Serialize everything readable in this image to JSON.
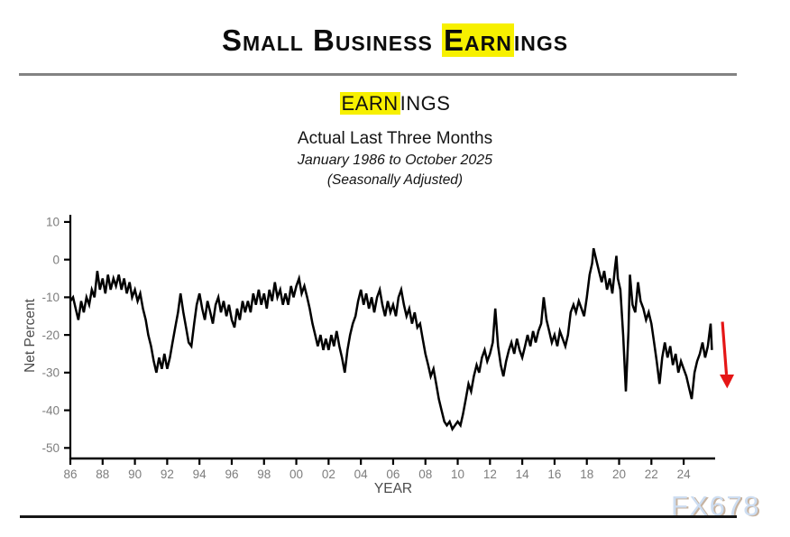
{
  "theme": {
    "highlight_color": "#f7f000",
    "line_color": "#000000",
    "arrow_color": "#e51616",
    "axis_color": "#000000",
    "tick_label_color": "#7d7d7d",
    "axis_title_color": "#4b4b4b"
  },
  "header": {
    "title_part1": "Small Business ",
    "title_highlight": "Earn",
    "title_part2": "ings"
  },
  "subtitle": {
    "line1_highlight": "EARN",
    "line1_rest": "INGS",
    "line2": "Actual Last Three Months",
    "line3": "January 1986 to October 2025",
    "line4": "(Seasonally Adjusted)"
  },
  "watermark": "FX678",
  "chart_data": {
    "type": "line",
    "title": "Earnings — Actual Last Three Months",
    "xlabel": "YEAR",
    "ylabel": "Net Percent",
    "legend": "none",
    "grid": false,
    "xlim": [
      1986,
      2025.95
    ],
    "ylim": [
      -52.8,
      11.9
    ],
    "x_tick_years": [
      1986,
      1988,
      1990,
      1992,
      1994,
      1996,
      1998,
      2000,
      2002,
      2004,
      2006,
      2008,
      2010,
      2012,
      2014,
      2016,
      2018,
      2020,
      2022,
      2024
    ],
    "x_tick_labels": [
      "86",
      "88",
      "90",
      "92",
      "94",
      "96",
      "98",
      "00",
      "02",
      "04",
      "06",
      "08",
      "10",
      "12",
      "14",
      "16",
      "18",
      "20",
      "22",
      "24"
    ],
    "y_ticks": [
      10,
      0,
      -10,
      -20,
      -30,
      -40,
      -50
    ],
    "y_tick_labels": [
      "10",
      "0",
      "-10",
      "-20",
      "-30",
      "-40",
      "-50"
    ],
    "series": [
      {
        "name": "Net Percent (Actual Last Three Months, Seasonally Adjusted)",
        "points": [
          [
            1986.0,
            -11
          ],
          [
            1986.17,
            -10
          ],
          [
            1986.33,
            -13
          ],
          [
            1986.5,
            -16
          ],
          [
            1986.67,
            -11
          ],
          [
            1986.83,
            -14
          ],
          [
            1987.0,
            -10
          ],
          [
            1987.17,
            -12
          ],
          [
            1987.33,
            -8
          ],
          [
            1987.5,
            -10
          ],
          [
            1987.67,
            -3
          ],
          [
            1987.83,
            -8
          ],
          [
            1988.0,
            -5
          ],
          [
            1988.17,
            -9
          ],
          [
            1988.33,
            -4
          ],
          [
            1988.5,
            -8
          ],
          [
            1988.67,
            -5
          ],
          [
            1988.83,
            -7
          ],
          [
            1989.0,
            -4
          ],
          [
            1989.17,
            -8
          ],
          [
            1989.33,
            -5
          ],
          [
            1989.5,
            -9
          ],
          [
            1989.67,
            -6
          ],
          [
            1989.83,
            -10
          ],
          [
            1990.0,
            -8
          ],
          [
            1990.17,
            -11
          ],
          [
            1990.33,
            -9
          ],
          [
            1990.5,
            -13
          ],
          [
            1990.67,
            -16
          ],
          [
            1990.83,
            -20
          ],
          [
            1991.0,
            -23
          ],
          [
            1991.17,
            -27
          ],
          [
            1991.33,
            -30
          ],
          [
            1991.5,
            -26
          ],
          [
            1991.67,
            -29
          ],
          [
            1991.83,
            -25
          ],
          [
            1992.0,
            -29
          ],
          [
            1992.17,
            -26
          ],
          [
            1992.33,
            -22
          ],
          [
            1992.5,
            -18
          ],
          [
            1992.67,
            -14
          ],
          [
            1992.83,
            -9
          ],
          [
            1993.0,
            -14
          ],
          [
            1993.17,
            -18
          ],
          [
            1993.33,
            -22
          ],
          [
            1993.5,
            -23
          ],
          [
            1993.67,
            -17
          ],
          [
            1993.83,
            -12
          ],
          [
            1994.0,
            -9
          ],
          [
            1994.17,
            -13
          ],
          [
            1994.33,
            -16
          ],
          [
            1994.5,
            -11
          ],
          [
            1994.67,
            -14
          ],
          [
            1994.83,
            -17
          ],
          [
            1995.0,
            -12
          ],
          [
            1995.17,
            -10
          ],
          [
            1995.33,
            -14
          ],
          [
            1995.5,
            -11
          ],
          [
            1995.67,
            -15
          ],
          [
            1995.83,
            -12
          ],
          [
            1996.0,
            -16
          ],
          [
            1996.17,
            -18
          ],
          [
            1996.33,
            -13
          ],
          [
            1996.5,
            -16
          ],
          [
            1996.67,
            -11
          ],
          [
            1996.83,
            -14
          ],
          [
            1997.0,
            -11
          ],
          [
            1997.17,
            -14
          ],
          [
            1997.33,
            -9
          ],
          [
            1997.5,
            -12
          ],
          [
            1997.67,
            -8
          ],
          [
            1997.83,
            -12
          ],
          [
            1998.0,
            -9
          ],
          [
            1998.17,
            -13
          ],
          [
            1998.33,
            -8
          ],
          [
            1998.5,
            -11
          ],
          [
            1998.67,
            -6
          ],
          [
            1998.83,
            -10
          ],
          [
            1999.0,
            -8
          ],
          [
            1999.17,
            -12
          ],
          [
            1999.33,
            -9
          ],
          [
            1999.5,
            -12
          ],
          [
            1999.67,
            -7
          ],
          [
            1999.83,
            -10
          ],
          [
            2000.0,
            -7
          ],
          [
            2000.17,
            -5
          ],
          [
            2000.33,
            -9
          ],
          [
            2000.5,
            -7
          ],
          [
            2000.67,
            -10
          ],
          [
            2000.83,
            -13
          ],
          [
            2001.0,
            -17
          ],
          [
            2001.17,
            -20
          ],
          [
            2001.33,
            -23
          ],
          [
            2001.5,
            -20
          ],
          [
            2001.67,
            -24
          ],
          [
            2001.83,
            -21
          ],
          [
            2002.0,
            -24
          ],
          [
            2002.17,
            -20
          ],
          [
            2002.33,
            -23
          ],
          [
            2002.5,
            -19
          ],
          [
            2002.67,
            -23
          ],
          [
            2002.83,
            -26
          ],
          [
            2003.0,
            -30
          ],
          [
            2003.17,
            -24
          ],
          [
            2003.33,
            -20
          ],
          [
            2003.5,
            -17
          ],
          [
            2003.67,
            -15
          ],
          [
            2003.83,
            -11
          ],
          [
            2004.0,
            -8
          ],
          [
            2004.17,
            -12
          ],
          [
            2004.33,
            -9
          ],
          [
            2004.5,
            -13
          ],
          [
            2004.67,
            -10
          ],
          [
            2004.83,
            -14
          ],
          [
            2005.0,
            -10
          ],
          [
            2005.17,
            -8
          ],
          [
            2005.33,
            -12
          ],
          [
            2005.5,
            -15
          ],
          [
            2005.67,
            -11
          ],
          [
            2005.83,
            -14
          ],
          [
            2006.0,
            -12
          ],
          [
            2006.17,
            -15
          ],
          [
            2006.33,
            -10
          ],
          [
            2006.5,
            -8
          ],
          [
            2006.67,
            -12
          ],
          [
            2006.83,
            -15
          ],
          [
            2007.0,
            -13
          ],
          [
            2007.17,
            -17
          ],
          [
            2007.33,
            -14
          ],
          [
            2007.5,
            -18
          ],
          [
            2007.67,
            -17
          ],
          [
            2007.83,
            -21
          ],
          [
            2008.0,
            -25
          ],
          [
            2008.17,
            -28
          ],
          [
            2008.33,
            -31
          ],
          [
            2008.5,
            -29
          ],
          [
            2008.67,
            -33
          ],
          [
            2008.83,
            -37
          ],
          [
            2009.0,
            -40
          ],
          [
            2009.17,
            -43
          ],
          [
            2009.33,
            -44
          ],
          [
            2009.5,
            -43
          ],
          [
            2009.67,
            -45
          ],
          [
            2009.83,
            -44
          ],
          [
            2010.0,
            -43
          ],
          [
            2010.17,
            -44
          ],
          [
            2010.33,
            -41
          ],
          [
            2010.5,
            -37
          ],
          [
            2010.67,
            -33
          ],
          [
            2010.83,
            -35
          ],
          [
            2011.0,
            -31
          ],
          [
            2011.17,
            -28
          ],
          [
            2011.33,
            -30
          ],
          [
            2011.5,
            -26
          ],
          [
            2011.67,
            -24
          ],
          [
            2011.83,
            -27
          ],
          [
            2012.0,
            -25
          ],
          [
            2012.17,
            -22
          ],
          [
            2012.33,
            -13
          ],
          [
            2012.5,
            -23
          ],
          [
            2012.67,
            -28
          ],
          [
            2012.83,
            -31
          ],
          [
            2013.0,
            -27
          ],
          [
            2013.17,
            -24
          ],
          [
            2013.33,
            -22
          ],
          [
            2013.5,
            -25
          ],
          [
            2013.67,
            -21
          ],
          [
            2013.83,
            -24
          ],
          [
            2014.0,
            -26
          ],
          [
            2014.17,
            -23
          ],
          [
            2014.33,
            -20
          ],
          [
            2014.5,
            -23
          ],
          [
            2014.67,
            -19
          ],
          [
            2014.83,
            -22
          ],
          [
            2015.0,
            -19
          ],
          [
            2015.17,
            -17
          ],
          [
            2015.33,
            -10
          ],
          [
            2015.5,
            -16
          ],
          [
            2015.67,
            -19
          ],
          [
            2015.83,
            -22
          ],
          [
            2016.0,
            -20
          ],
          [
            2016.17,
            -23
          ],
          [
            2016.33,
            -19
          ],
          [
            2016.5,
            -21
          ],
          [
            2016.67,
            -23
          ],
          [
            2016.83,
            -20
          ],
          [
            2017.0,
            -14
          ],
          [
            2017.17,
            -12
          ],
          [
            2017.33,
            -14
          ],
          [
            2017.5,
            -11
          ],
          [
            2017.67,
            -13
          ],
          [
            2017.83,
            -15
          ],
          [
            2018.0,
            -10
          ],
          [
            2018.17,
            -4
          ],
          [
            2018.33,
            -1
          ],
          [
            2018.42,
            3
          ],
          [
            2018.58,
            0
          ],
          [
            2018.75,
            -3
          ],
          [
            2018.92,
            -6
          ],
          [
            2019.08,
            -3
          ],
          [
            2019.25,
            -8
          ],
          [
            2019.42,
            -5
          ],
          [
            2019.58,
            -9
          ],
          [
            2019.75,
            -2
          ],
          [
            2019.83,
            1
          ],
          [
            2019.92,
            -5
          ],
          [
            2020.08,
            -8
          ],
          [
            2020.25,
            -20
          ],
          [
            2020.42,
            -35
          ],
          [
            2020.58,
            -19
          ],
          [
            2020.67,
            -4
          ],
          [
            2020.83,
            -12
          ],
          [
            2021.0,
            -14
          ],
          [
            2021.17,
            -6
          ],
          [
            2021.33,
            -11
          ],
          [
            2021.5,
            -13
          ],
          [
            2021.67,
            -16
          ],
          [
            2021.83,
            -14
          ],
          [
            2022.0,
            -17
          ],
          [
            2022.17,
            -22
          ],
          [
            2022.33,
            -27
          ],
          [
            2022.5,
            -33
          ],
          [
            2022.67,
            -26
          ],
          [
            2022.83,
            -22
          ],
          [
            2023.0,
            -26
          ],
          [
            2023.17,
            -23
          ],
          [
            2023.33,
            -28
          ],
          [
            2023.5,
            -25
          ],
          [
            2023.67,
            -30
          ],
          [
            2023.83,
            -27
          ],
          [
            2024.0,
            -29
          ],
          [
            2024.17,
            -31
          ],
          [
            2024.33,
            -34
          ],
          [
            2024.5,
            -37
          ],
          [
            2024.67,
            -30
          ],
          [
            2024.83,
            -27
          ],
          [
            2025.0,
            -25
          ],
          [
            2025.17,
            -22
          ],
          [
            2025.33,
            -26
          ],
          [
            2025.5,
            -23
          ],
          [
            2025.58,
            -20
          ],
          [
            2025.67,
            -17
          ],
          [
            2025.75,
            -24
          ]
        ]
      }
    ],
    "annotation_arrow": {
      "x_start": 2026.4,
      "value_start": -16.5,
      "x_end": 2026.65,
      "value_end": -30.5,
      "tip_value": -34.2
    }
  }
}
